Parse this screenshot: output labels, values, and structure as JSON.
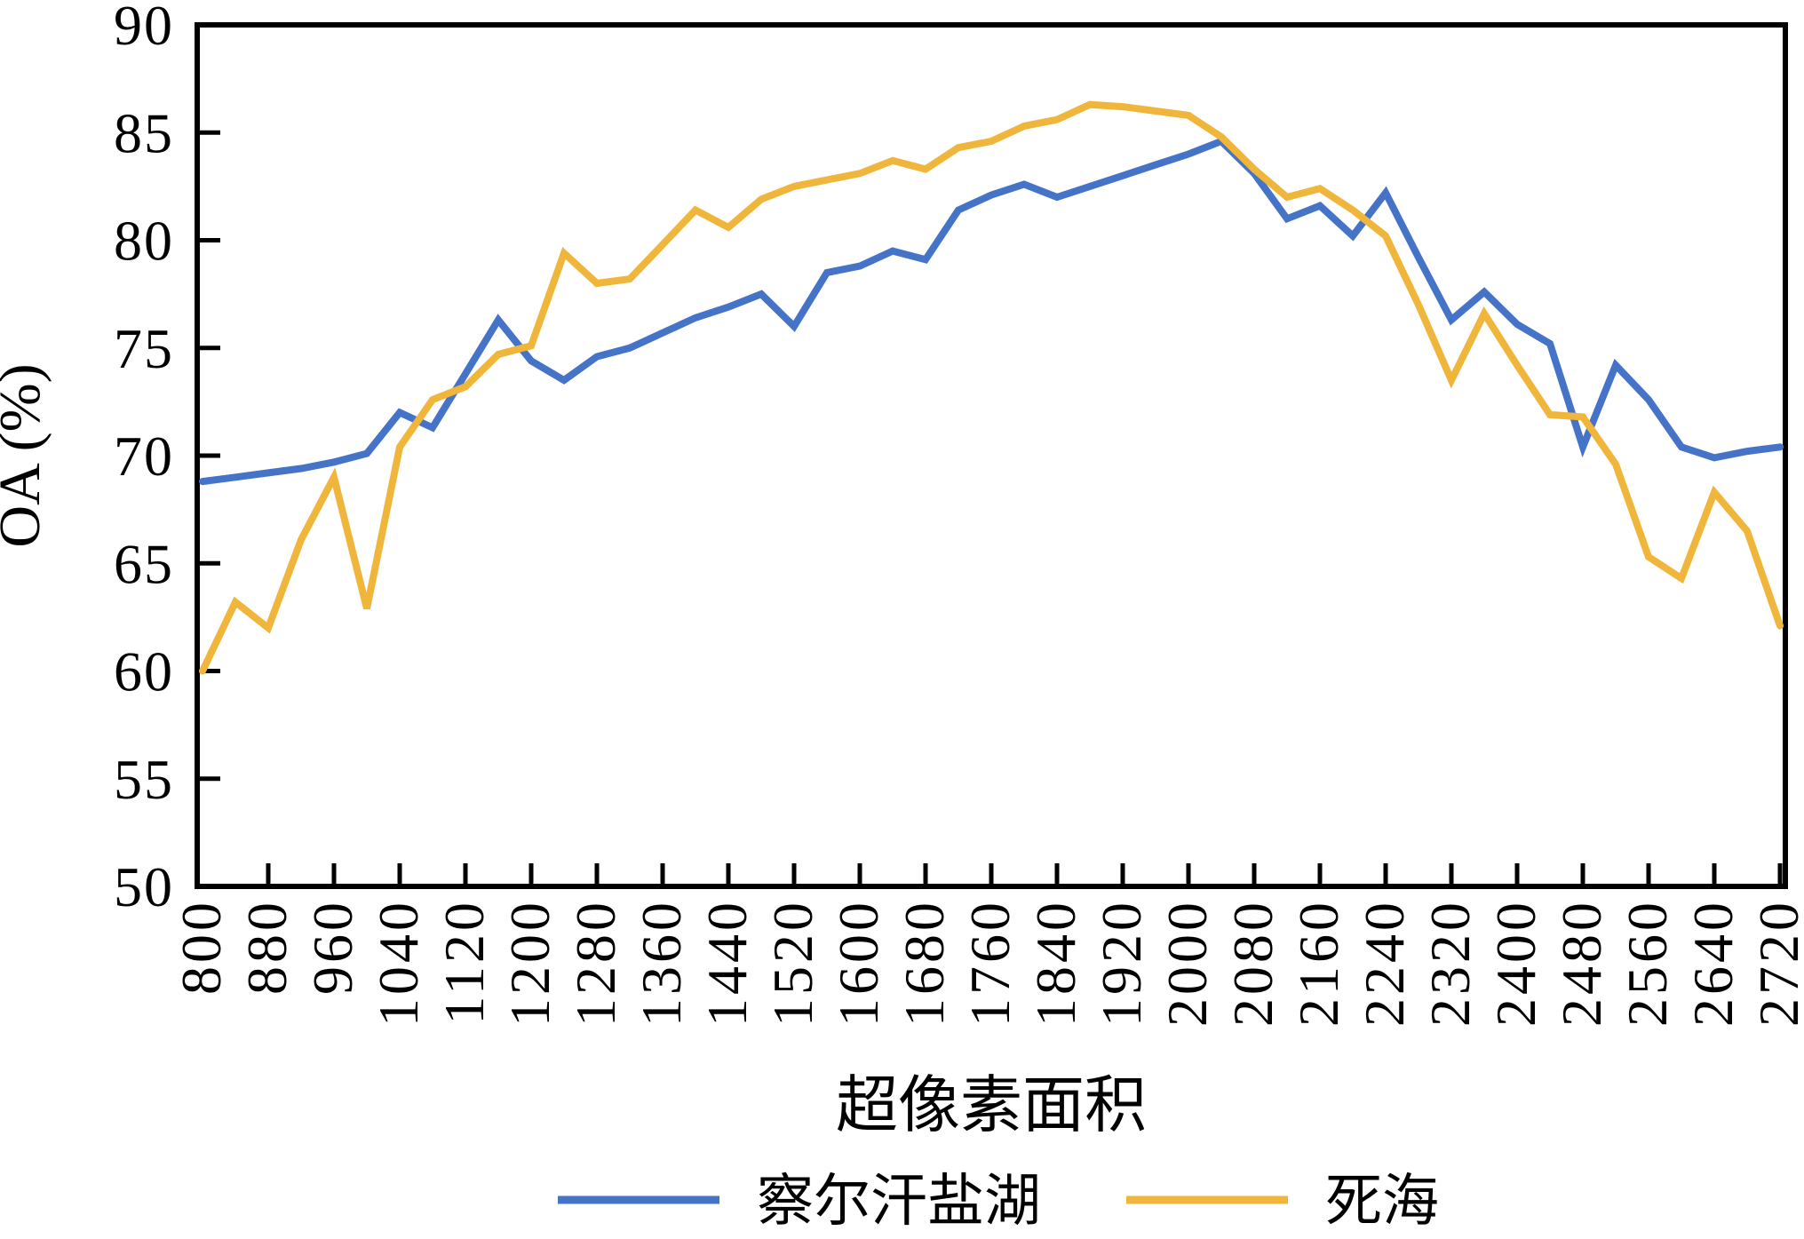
{
  "figure": {
    "background": "#ffffff",
    "axis_color": "#000000"
  },
  "axes": {
    "y_label": "OA (%)",
    "x_label": "超像素面积",
    "y_tick_labels": [
      "50",
      "55",
      "60",
      "65",
      "70",
      "75",
      "80",
      "85",
      "90"
    ]
  },
  "legend": {
    "items": [
      {
        "label": "察尔汗盐湖",
        "color": "#4573C7"
      },
      {
        "label": "死海",
        "color": "#F0B63B"
      }
    ]
  },
  "chart_data": {
    "type": "line",
    "title": "",
    "xlabel": "超像素面积",
    "ylabel": "OA (%)",
    "ylim": [
      50,
      90
    ],
    "y_ticks": [
      50,
      55,
      60,
      65,
      70,
      75,
      80,
      85,
      90
    ],
    "xlim": [
      788,
      2730
    ],
    "x_tick_labels": [
      800,
      880,
      960,
      1040,
      1120,
      1200,
      1280,
      1360,
      1440,
      1520,
      1600,
      1680,
      1760,
      1840,
      1920,
      2000,
      2080,
      2160,
      2240,
      2320,
      2400,
      2480,
      2560,
      2640,
      2720
    ],
    "grid": false,
    "legend_position": "bottom",
    "x": [
      800,
      840,
      880,
      920,
      960,
      1000,
      1040,
      1080,
      1120,
      1160,
      1200,
      1240,
      1280,
      1320,
      1360,
      1400,
      1440,
      1480,
      1520,
      1560,
      1600,
      1640,
      1680,
      1720,
      1760,
      1800,
      1840,
      1880,
      1920,
      1960,
      2000,
      2040,
      2080,
      2120,
      2160,
      2200,
      2240,
      2280,
      2320,
      2360,
      2400,
      2440,
      2480,
      2520,
      2560,
      2600,
      2640,
      2680,
      2720
    ],
    "series": [
      {
        "name": "察尔汗盐湖",
        "color": "#4573C7",
        "values": [
          68.8,
          69.0,
          69.2,
          69.4,
          69.7,
          70.1,
          72.0,
          71.3,
          73.8,
          76.3,
          74.4,
          73.5,
          74.6,
          75.0,
          75.7,
          76.4,
          76.9,
          77.5,
          76.0,
          78.5,
          78.8,
          79.5,
          79.1,
          81.4,
          82.1,
          82.6,
          82.0,
          82.5,
          83.0,
          83.5,
          84.0,
          84.6,
          83.1,
          81.0,
          81.6,
          80.2,
          82.2,
          79.2,
          76.3,
          77.6,
          76.1,
          75.2,
          70.4,
          74.2,
          72.6,
          70.4,
          69.9,
          70.2,
          70.4
        ]
      },
      {
        "name": "死海",
        "color": "#F0B63B",
        "values": [
          60.0,
          63.2,
          62.0,
          66.1,
          69.0,
          62.9,
          70.4,
          72.6,
          73.2,
          74.7,
          75.1,
          79.4,
          78.0,
          78.2,
          79.8,
          81.4,
          80.6,
          81.9,
          82.5,
          82.8,
          83.1,
          83.7,
          83.3,
          84.3,
          84.6,
          85.3,
          85.6,
          86.3,
          86.2,
          86.0,
          85.8,
          84.8,
          83.3,
          82.0,
          82.4,
          81.4,
          80.2,
          77.0,
          73.5,
          76.6,
          74.2,
          71.9,
          71.8,
          69.6,
          65.3,
          64.3,
          68.3,
          66.5,
          62.1
        ]
      }
    ]
  }
}
